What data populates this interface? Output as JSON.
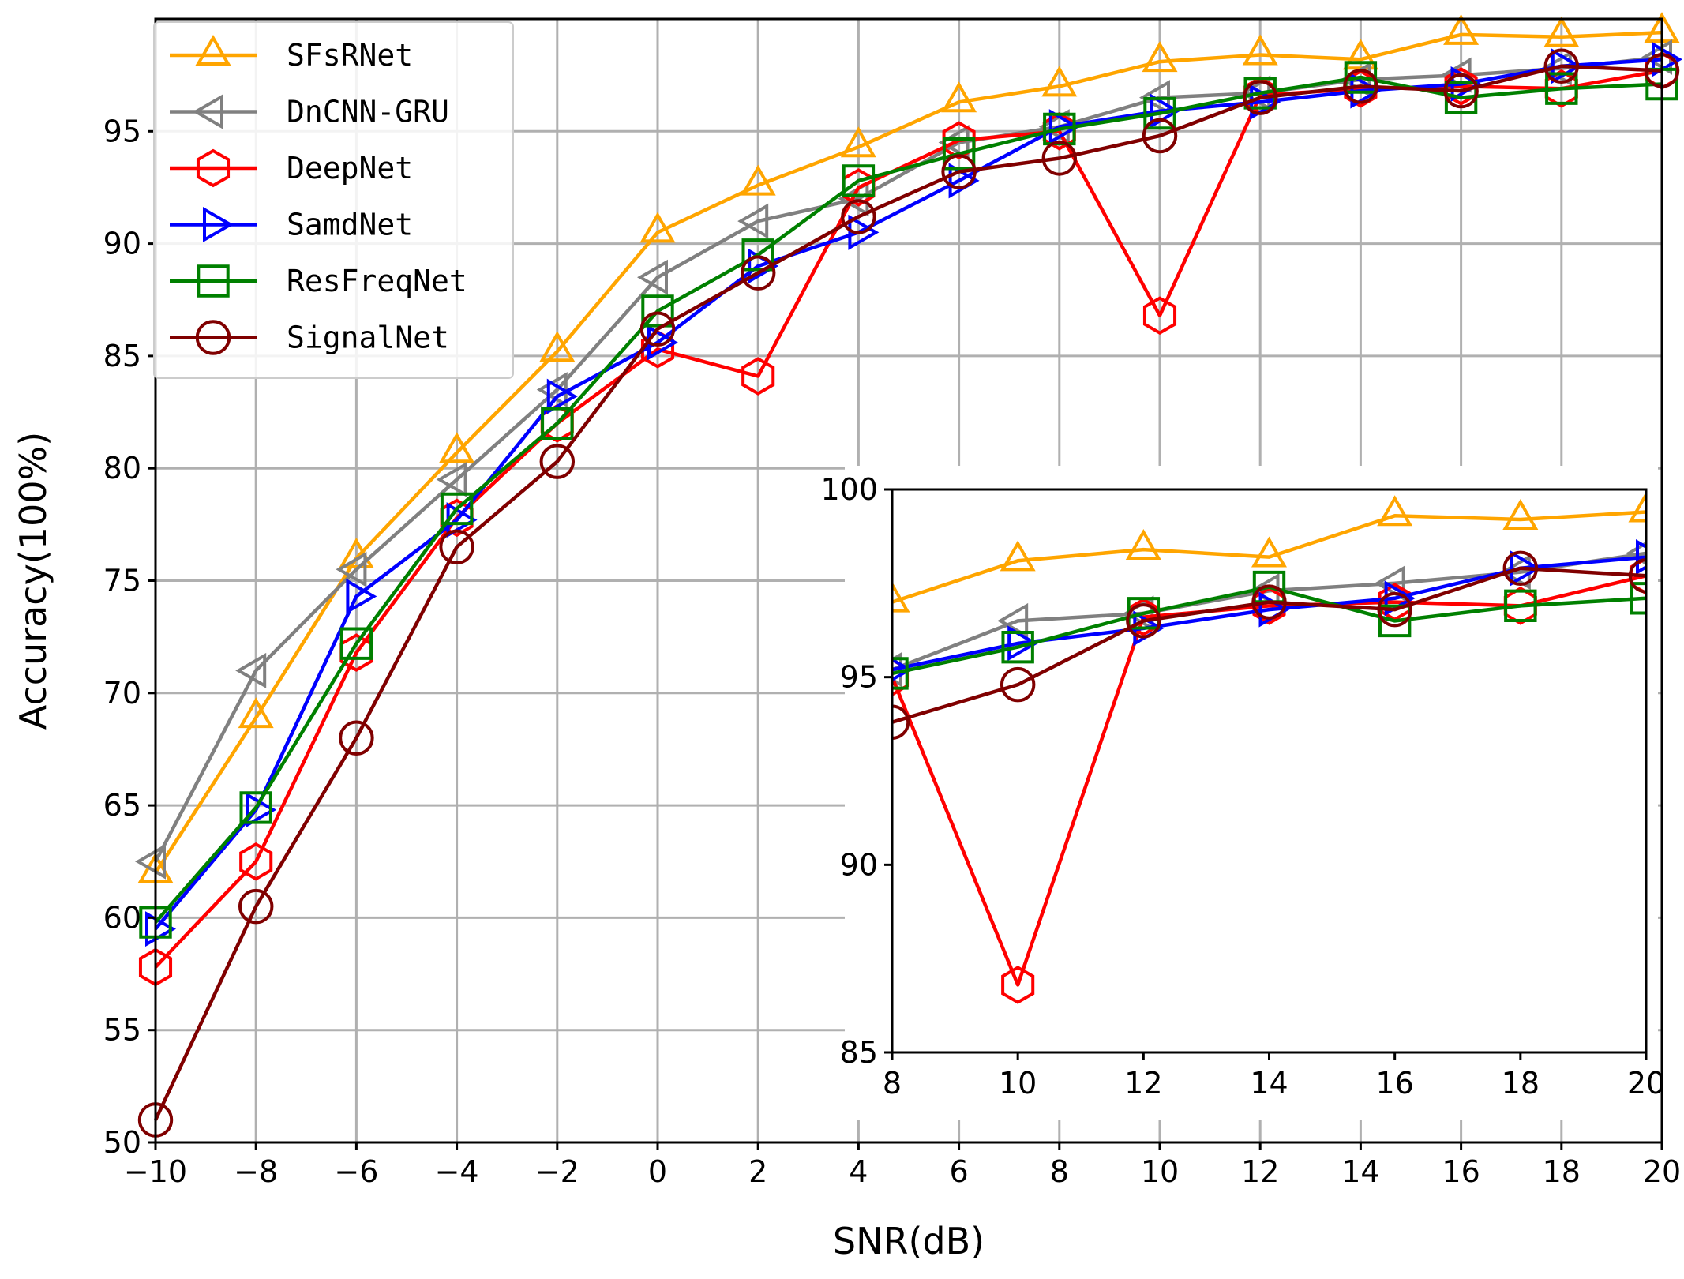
{
  "chart_data": {
    "type": "line",
    "xlabel": "SNR(dB)",
    "ylabel": "Accuracy(100%)",
    "xlim": [
      -10,
      20
    ],
    "ylim": [
      50,
      100
    ],
    "xticks": [
      -10,
      -8,
      -6,
      -4,
      -2,
      0,
      2,
      4,
      6,
      8,
      10,
      12,
      14,
      16,
      18,
      20
    ],
    "xtick_labels": [
      "−10",
      "−8",
      "−6",
      "−4",
      "−2",
      "0",
      "2",
      "4",
      "6",
      "8",
      "10",
      "12",
      "14",
      "16",
      "18",
      "20"
    ],
    "yticks": [
      50,
      55,
      60,
      65,
      70,
      75,
      80,
      85,
      90,
      95
    ],
    "ytick_labels": [
      "50",
      "55",
      "60",
      "65",
      "70",
      "75",
      "80",
      "85",
      "90",
      "95"
    ],
    "grid": true,
    "legend_position": "top-left",
    "x": [
      -10,
      -8,
      -6,
      -4,
      -2,
      0,
      2,
      4,
      6,
      8,
      10,
      12,
      14,
      16,
      18,
      20
    ],
    "series": [
      {
        "name": "SFsRNet",
        "color": "#ffa500",
        "marker": "triangle-up",
        "values": [
          62.0,
          68.9,
          76.0,
          80.7,
          85.2,
          90.5,
          92.6,
          94.3,
          96.3,
          97.0,
          98.1,
          98.4,
          98.2,
          99.3,
          99.2,
          99.4
        ]
      },
      {
        "name": "DnCNN-GRU",
        "color": "#808080",
        "marker": "triangle-left",
        "values": [
          62.5,
          71.0,
          75.5,
          79.5,
          83.5,
          88.5,
          91.0,
          92.0,
          94.5,
          95.2,
          96.5,
          96.7,
          97.3,
          97.5,
          97.8,
          98.3
        ]
      },
      {
        "name": "DeepNet",
        "color": "#ff0000",
        "marker": "hexagon",
        "values": [
          57.8,
          62.5,
          71.8,
          77.8,
          82.0,
          85.3,
          84.1,
          92.5,
          94.6,
          95.0,
          86.8,
          96.6,
          96.9,
          97.0,
          96.9,
          97.7
        ]
      },
      {
        "name": "SamdNet",
        "color": "#0000ff",
        "marker": "triangle-right",
        "values": [
          59.5,
          64.8,
          74.3,
          77.7,
          83.2,
          85.6,
          89.0,
          90.5,
          92.8,
          95.2,
          95.9,
          96.3,
          96.8,
          97.1,
          97.9,
          98.2
        ]
      },
      {
        "name": "ResFreqNet",
        "color": "#008000",
        "marker": "square",
        "values": [
          59.8,
          64.9,
          72.2,
          78.2,
          82.0,
          87.0,
          89.5,
          92.8,
          94.0,
          95.1,
          95.8,
          96.7,
          97.4,
          96.5,
          96.9,
          97.1
        ]
      },
      {
        "name": "SignalNet",
        "color": "#800000",
        "marker": "circle",
        "values": [
          51.0,
          60.5,
          68.0,
          76.5,
          80.3,
          86.2,
          88.7,
          91.2,
          93.2,
          93.8,
          94.8,
          96.5,
          97.0,
          96.8,
          97.9,
          97.7
        ]
      }
    ],
    "inset": {
      "xlim": [
        8,
        20
      ],
      "ylim": [
        85,
        100
      ],
      "xticks": [
        8,
        10,
        12,
        14,
        16,
        18,
        20
      ],
      "xtick_labels": [
        "8",
        "10",
        "12",
        "14",
        "16",
        "18",
        "20"
      ],
      "yticks": [
        85,
        90,
        95,
        100
      ],
      "ytick_labels": [
        "85",
        "90",
        "95",
        "100"
      ],
      "grid": false
    }
  }
}
